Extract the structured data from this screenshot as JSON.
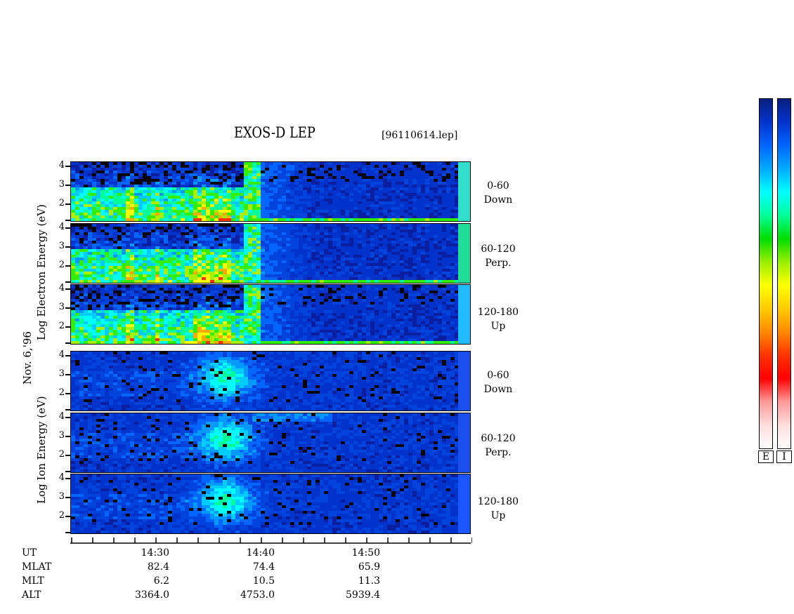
{
  "header": {
    "title": "EXOS-D LEP",
    "file": "[96110614.lep]"
  },
  "date_label": "Nov. 6,'96",
  "electron_axis_label": "Log Electron Energy (eV)",
  "ion_axis_label": "Log Ion Energy (eV)",
  "colorbar": {
    "electron_label": "E",
    "ion_label": "I",
    "colors": [
      "#0a1f7f",
      "#0033cc",
      "#0066ff",
      "#00aaff",
      "#00ffff",
      "#00ff99",
      "#00dd00",
      "#99ee00",
      "#ffff00",
      "#ffcc00",
      "#ff8800",
      "#ff3300",
      "#ff0000",
      "#ff9999",
      "#ffdddd",
      "#ffffff"
    ]
  },
  "axis": {
    "row_headers": [
      "UT",
      "MLAT",
      "MLT",
      "ALT"
    ],
    "ticks": [
      {
        "ut": "14:30",
        "mlat": "82.4",
        "mlt": "6.2",
        "alt": "3364.0"
      },
      {
        "ut": "14:40",
        "mlat": "74.4",
        "mlt": "10.5",
        "alt": "4753.0"
      },
      {
        "ut": "14:50",
        "mlat": "65.9",
        "mlt": "11.3",
        "alt": "5939.4"
      }
    ]
  },
  "chart_data": {
    "type": "heatmap",
    "title": "EXOS-D LEP",
    "x_axis": "UT",
    "x_ticks": [
      "14:30",
      "14:40",
      "14:50"
    ],
    "y_ticks": [
      "4",
      "3",
      "2"
    ],
    "panels": [
      {
        "species": "Electron",
        "pitch_angle": "0-60",
        "direction": "Down"
      },
      {
        "species": "Electron",
        "pitch_angle": "60-120",
        "direction": "Perp."
      },
      {
        "species": "Electron",
        "pitch_angle": "120-180",
        "direction": "Up"
      },
      {
        "species": "Ion",
        "pitch_angle": "0-60",
        "direction": "Down"
      },
      {
        "species": "Ion",
        "pitch_angle": "60-120",
        "direction": "Perp."
      },
      {
        "species": "Ion",
        "pitch_angle": "120-180",
        "direction": "Up"
      }
    ]
  }
}
